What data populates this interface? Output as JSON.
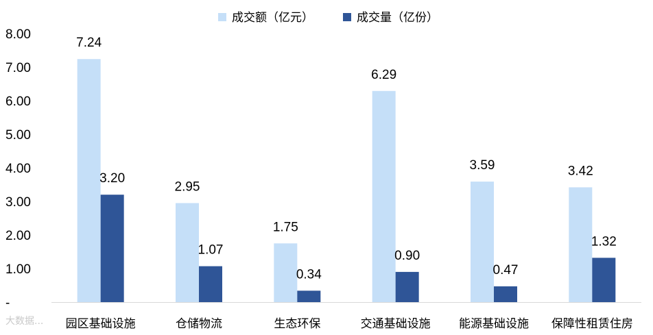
{
  "chart_data": {
    "type": "bar",
    "categories": [
      "园区基础设施",
      "仓储物流",
      "生态环保",
      "交通基础设施",
      "能源基础设施",
      "保障性租赁住房"
    ],
    "series": [
      {
        "name": "成交额（亿元）",
        "values": [
          7.24,
          2.95,
          1.75,
          6.29,
          3.59,
          3.42
        ],
        "color": "#c5dff8"
      },
      {
        "name": "成交量（亿份）",
        "values": [
          3.2,
          1.07,
          0.34,
          0.9,
          0.47,
          1.32
        ],
        "color": "#2f5597"
      }
    ],
    "yticks": [
      "-",
      "1.00",
      "2.00",
      "3.00",
      "4.00",
      "5.00",
      "6.00",
      "7.00",
      "8.00"
    ],
    "ylim": [
      0,
      8
    ],
    "legend_position": "top",
    "grid": false
  },
  "watermark": "大数据..."
}
